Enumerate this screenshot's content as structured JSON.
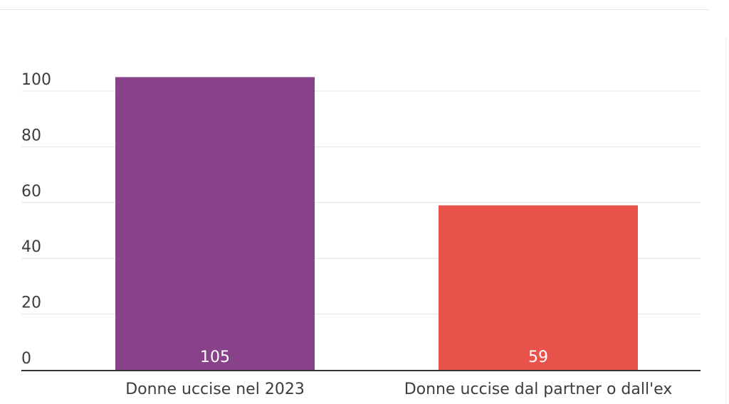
{
  "chart_data": {
    "type": "bar",
    "categories": [
      "Donne uccise nel 2023",
      "Donne uccise dal partner o dall'ex"
    ],
    "values": [
      105,
      59
    ],
    "data_labels": [
      "105",
      "59"
    ],
    "colors": [
      "#874289",
      "#e9514b"
    ],
    "ylim": [
      0,
      100
    ],
    "y_ticks": [
      "0",
      "20",
      "40",
      "60",
      "80",
      "100"
    ],
    "y_tick_values": [
      0,
      20,
      40,
      60,
      80,
      100
    ],
    "grid": true,
    "legend": "none",
    "title": "",
    "xlabel": "",
    "ylabel": ""
  }
}
